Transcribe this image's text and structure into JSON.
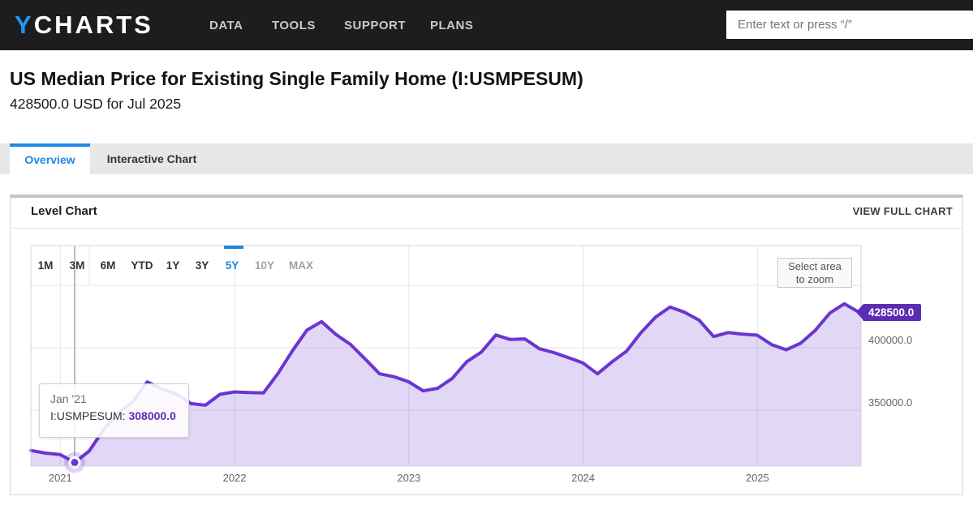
{
  "theme": {
    "accent_blue": "#1e88e5",
    "nav_background": "#1d1d1f"
  },
  "nav": {
    "logo_y": "Y",
    "logo_rest": "CHARTS",
    "items": [
      "DATA",
      "TOOLS",
      "SUPPORT",
      "PLANS"
    ],
    "search_placeholder": "Enter text or press “/”"
  },
  "page": {
    "title": "US Median Price for Existing Single Family Home (I:USMPESUM)",
    "subtitle": "428500.0 USD for Jul 2025"
  },
  "tabs": [
    {
      "label": "Overview",
      "active": true
    },
    {
      "label": "Interactive Chart",
      "active": false
    }
  ],
  "card": {
    "title": "Level Chart",
    "action": "VIEW FULL CHART"
  },
  "range_buttons": [
    {
      "label": "1M"
    },
    {
      "label": "3M"
    },
    {
      "label": "6M"
    },
    {
      "label": "YTD"
    },
    {
      "label": "1Y"
    },
    {
      "label": "3Y"
    },
    {
      "label": "5Y",
      "active": true
    },
    {
      "label": "10Y",
      "muted": true
    },
    {
      "label": "MAX",
      "muted": true
    }
  ],
  "chart_data": {
    "type": "area",
    "title": "Level Chart",
    "series_name": "I:USMPESUM",
    "unit": "USD",
    "x": [
      "2020-10",
      "2020-11",
      "2020-12",
      "2021-01",
      "2021-02",
      "2021-03",
      "2021-04",
      "2021-05",
      "2021-06",
      "2021-07",
      "2021-08",
      "2021-09",
      "2021-10",
      "2021-11",
      "2021-12",
      "2022-01",
      "2022-02",
      "2022-03",
      "2022-04",
      "2022-05",
      "2022-06",
      "2022-07",
      "2022-08",
      "2022-09",
      "2022-10",
      "2022-11",
      "2022-12",
      "2023-01",
      "2023-02",
      "2023-03",
      "2023-04",
      "2023-05",
      "2023-06",
      "2023-07",
      "2023-08",
      "2023-09",
      "2023-10",
      "2023-11",
      "2023-12",
      "2024-01",
      "2024-02",
      "2024-03",
      "2024-04",
      "2024-05",
      "2024-06",
      "2024-07",
      "2024-08",
      "2024-09",
      "2024-10",
      "2024-11",
      "2024-12",
      "2025-01",
      "2025-02",
      "2025-03",
      "2025-04",
      "2025-05",
      "2025-06",
      "2025-07"
    ],
    "values": [
      317600,
      315500,
      314300,
      308000,
      317100,
      334500,
      347400,
      356600,
      372600,
      367000,
      363100,
      355200,
      353900,
      362600,
      364600,
      364100,
      363700,
      379300,
      397600,
      414200,
      420900,
      410600,
      402600,
      391000,
      379100,
      376700,
      372700,
      365400,
      367500,
      375400,
      388800,
      396500,
      410200,
      406600,
      407100,
      399200,
      396100,
      392000,
      387800,
      379100,
      388700,
      397200,
      412100,
      424500,
      432700,
      428500,
      422100,
      409000,
      412200,
      410900,
      410100,
      402500,
      398400,
      403700,
      414000,
      427800,
      435300,
      428500
    ],
    "y_ticks": [
      {
        "label": "350000.0",
        "value": 350000
      },
      {
        "label": "400000.0",
        "value": 400000
      }
    ],
    "gridline_values": [
      350000,
      400000,
      450000
    ],
    "year_ticks": [
      2021,
      2022,
      2023,
      2024,
      2025
    ],
    "ylim": [
      305000,
      475000
    ],
    "grid": true,
    "legend": "none",
    "last_value_label": "428500.0",
    "zoom_hint": [
      "Select area",
      "to zoom"
    ],
    "tooltip": {
      "date": "Jan '21",
      "month": "2021-01",
      "series_label": "I:USMPESUM:",
      "value": "308000.0"
    },
    "colors": {
      "line": "#6a35d0",
      "fill": "rgba(106,53,208,0.20)",
      "badge": "#5b2db2",
      "gridline": "#e5e5e5",
      "plot_border": "#d6d6d6",
      "crosshair": "#8f8f8f"
    }
  }
}
